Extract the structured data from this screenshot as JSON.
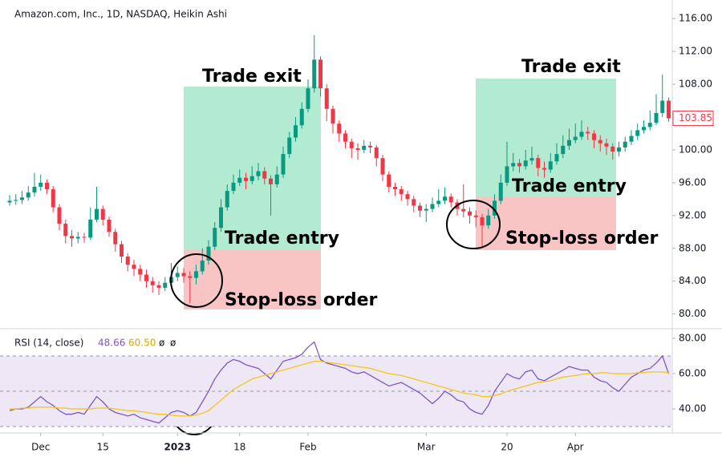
{
  "chart_data": [
    {
      "type": "candlestick",
      "title": "Amazon.com, Inc., 1D, NASDAQ, Heikin Ashi",
      "up_color": "#089981",
      "down_color": "#f23645",
      "ylim": [
        78.4,
        117
      ],
      "yticks": [
        {
          "value": 80,
          "label": "80.00"
        },
        {
          "value": 84,
          "label": "84.00"
        },
        {
          "value": 88,
          "label": "88.00"
        },
        {
          "value": 92,
          "label": "92.00"
        },
        {
          "value": 96,
          "label": "96.00"
        },
        {
          "value": 100,
          "label": "100.00"
        },
        {
          "value": 104,
          "label": "104.00"
        },
        {
          "value": 108,
          "label": "108.00"
        },
        {
          "value": 112,
          "label": "112.00"
        },
        {
          "value": 116,
          "label": "116.00"
        }
      ],
      "open": [
        93.6,
        93.8,
        93.9,
        94.2,
        94.8,
        95.5,
        96.0,
        95.2,
        93.0,
        91.0,
        89.5,
        89.2,
        89.4,
        89.3,
        91.5,
        92.8,
        91.5,
        90.0,
        88.5,
        87.0,
        86.0,
        85.5,
        84.8,
        84.0,
        83.5,
        83.2,
        83.8,
        84.5,
        85.0,
        84.6,
        84.4,
        85.2,
        86.5,
        88.2,
        90.5,
        93.0,
        95.0,
        96.0,
        96.6,
        96.2,
        96.8,
        97.4,
        96.5,
        95.8,
        97.0,
        99.5,
        101.5,
        103.0,
        105.0,
        107.5,
        111.0,
        107.5,
        105.0,
        103.2,
        102.0,
        101.0,
        100.2,
        100.0,
        100.5,
        100.3,
        99.0,
        97.0,
        95.5,
        95.2,
        94.6,
        94.0,
        93.2,
        92.6,
        92.8,
        93.4,
        93.8,
        94.3,
        93.6,
        92.8,
        92.5,
        92.0,
        91.8,
        90.8,
        92.0,
        93.8,
        96.0,
        98.0,
        98.4,
        98.0,
        98.7,
        99.0,
        97.8,
        97.6,
        98.6,
        99.5,
        100.5,
        101.2,
        101.6,
        102.2,
        102.0,
        101.2,
        100.8,
        100.4,
        99.8,
        100.3,
        101.0,
        101.7,
        102.4,
        102.8,
        103.3,
        104.5,
        106.0
      ],
      "high": [
        94.5,
        94.6,
        95.0,
        95.6,
        97.2,
        97.0,
        96.4,
        95.6,
        93.4,
        91.5,
        90.2,
        90.0,
        89.9,
        93.0,
        95.5,
        93.2,
        91.9,
        90.4,
        88.9,
        87.4,
        86.6,
        86.0,
        85.4,
        84.5,
        84.0,
        84.5,
        86.2,
        85.8,
        85.6,
        85.2,
        86.0,
        88.0,
        89.0,
        91.2,
        94.0,
        95.8,
        97.0,
        97.6,
        97.2,
        98.0,
        98.4,
        97.9,
        96.9,
        98.0,
        100.4,
        102.2,
        104.0,
        105.8,
        108.6,
        114.0,
        111.4,
        108.0,
        105.4,
        103.6,
        102.4,
        101.4,
        100.8,
        101.2,
        101.0,
        100.6,
        99.4,
        97.4,
        96.0,
        95.6,
        95.0,
        94.4,
        93.6,
        93.4,
        94.2,
        95.2,
        95.4,
        94.7,
        94.0,
        95.8,
        93.0,
        92.6,
        92.2,
        92.8,
        94.6,
        97.0,
        101.0,
        99.6,
        98.9,
        100.0,
        100.4,
        99.4,
        98.6,
        99.6,
        100.8,
        101.8,
        102.6,
        103.2,
        103.6,
        102.8,
        102.4,
        101.8,
        101.4,
        100.8,
        101.0,
        101.6,
        102.4,
        103.2,
        103.6,
        104.8,
        106.8,
        109.2,
        106.4
      ],
      "low": [
        93.2,
        93.3,
        93.4,
        93.8,
        94.3,
        95.0,
        94.6,
        92.4,
        90.2,
        88.6,
        88.2,
        88.6,
        88.7,
        89.0,
        91.2,
        90.8,
        89.4,
        87.6,
        86.2,
        85.2,
        84.6,
        84.0,
        83.2,
        82.6,
        82.3,
        82.8,
        83.5,
        84.0,
        83.8,
        81.3,
        83.6,
        84.8,
        86.0,
        87.8,
        90.0,
        92.6,
        94.6,
        95.6,
        95.2,
        95.8,
        96.3,
        95.8,
        92.0,
        95.4,
        96.6,
        99.0,
        101.0,
        102.6,
        104.6,
        107.0,
        106.5,
        103.5,
        102.0,
        101.0,
        100.2,
        99.0,
        98.8,
        99.6,
        99.6,
        98.0,
        96.2,
        94.8,
        94.4,
        93.8,
        93.2,
        92.4,
        91.8,
        91.2,
        92.4,
        93.0,
        93.4,
        93.0,
        92.0,
        91.8,
        91.0,
        90.6,
        88.2,
        90.4,
        91.6,
        93.4,
        95.6,
        97.4,
        97.2,
        97.6,
        98.2,
        96.8,
        96.6,
        97.2,
        98.2,
        99.0,
        100.0,
        100.8,
        101.2,
        101.2,
        100.2,
        99.8,
        99.4,
        98.8,
        99.2,
        99.8,
        100.6,
        101.2,
        102.0,
        102.4,
        103.0,
        104.0,
        103.4
      ],
      "close": [
        93.8,
        93.9,
        94.2,
        94.8,
        95.5,
        96.0,
        95.2,
        93.0,
        91.0,
        89.5,
        89.2,
        89.4,
        89.3,
        91.5,
        92.8,
        91.5,
        90.0,
        88.5,
        87.0,
        86.0,
        85.5,
        84.8,
        84.0,
        83.5,
        83.2,
        83.8,
        84.5,
        85.0,
        84.6,
        84.4,
        85.2,
        86.5,
        88.2,
        90.5,
        93.0,
        95.0,
        96.0,
        96.6,
        96.2,
        96.8,
        97.4,
        96.5,
        95.8,
        97.0,
        99.5,
        101.5,
        103.0,
        105.0,
        107.5,
        111.0,
        107.5,
        105.0,
        103.2,
        102.0,
        101.0,
        100.2,
        100.0,
        100.5,
        100.3,
        99.0,
        97.0,
        95.5,
        95.2,
        94.6,
        94.0,
        93.2,
        92.6,
        92.8,
        93.4,
        93.8,
        94.3,
        93.6,
        92.8,
        92.5,
        92.0,
        91.8,
        90.8,
        92.0,
        93.8,
        96.0,
        98.0,
        98.4,
        98.0,
        98.7,
        99.0,
        97.8,
        97.6,
        98.6,
        99.5,
        100.5,
        101.2,
        101.6,
        102.2,
        102.0,
        101.2,
        100.8,
        100.4,
        99.8,
        100.3,
        101.0,
        101.7,
        102.4,
        102.8,
        103.3,
        104.5,
        106.0,
        103.85
      ],
      "annotations": [
        "Trade exit",
        "Trade entry",
        "Stop-loss order",
        "Trade exit",
        "Trade entry",
        "Stop-loss order"
      ]
    },
    {
      "type": "line",
      "title": "RSI (14, close)",
      "legend_values": [
        "48.66",
        "60.50",
        "ø",
        "ø"
      ],
      "ylim": [
        26.4,
        84.1
      ],
      "band_color": "#ede7f6",
      "levels": [
        30,
        50,
        70
      ],
      "yticks": [
        {
          "value": 40,
          "label": "40.00"
        },
        {
          "value": 60,
          "label": "60.00"
        },
        {
          "value": 80,
          "label": "80.00"
        }
      ],
      "xticks": [
        {
          "value": 5,
          "label": "Dec"
        },
        {
          "value": 15,
          "label": "15"
        },
        {
          "value": 27,
          "label": "2023"
        },
        {
          "value": 37,
          "label": "18"
        },
        {
          "value": 48,
          "label": "Feb"
        },
        {
          "value": 67,
          "label": "Mar"
        },
        {
          "value": 80,
          "label": "20"
        },
        {
          "value": 91,
          "label": "Apr"
        }
      ],
      "series": [
        {
          "color": "#7e57c2",
          "values": [
            39,
            40,
            40,
            41,
            44,
            47,
            44,
            42,
            39,
            37,
            37,
            38,
            37,
            42,
            47,
            44,
            40,
            38,
            37,
            36,
            37,
            35,
            34,
            33,
            32,
            35,
            38,
            39,
            38,
            36,
            38,
            44,
            50,
            57,
            62,
            66,
            68,
            67,
            65,
            64,
            63,
            60,
            57,
            62,
            67,
            68,
            69,
            71,
            75,
            78,
            68,
            66,
            65,
            64,
            63,
            61,
            60,
            61,
            59,
            57,
            55,
            53,
            54,
            55,
            53,
            51,
            49,
            46,
            43,
            46,
            50,
            48,
            45,
            44,
            40,
            38,
            37,
            42,
            50,
            55,
            60,
            58,
            57,
            61,
            62,
            57,
            56,
            58,
            60,
            62,
            64,
            63,
            62,
            62,
            58,
            56,
            55,
            52,
            50,
            54,
            58,
            60,
            62,
            63,
            66,
            70,
            60
          ]
        },
        {
          "color": "#f5c518",
          "values": [
            40,
            40,
            40.5,
            40.5,
            41,
            41,
            41,
            41,
            40.5,
            40.5,
            40,
            40,
            40,
            40,
            40.5,
            40.5,
            40.5,
            40,
            39.5,
            39,
            39,
            38.5,
            38,
            37.5,
            37,
            37,
            36.5,
            36,
            36,
            36,
            36.5,
            37.5,
            39,
            42,
            45,
            48,
            51,
            53,
            55,
            57,
            58,
            59,
            60,
            61,
            62,
            63,
            64,
            65,
            66,
            67,
            67,
            66.5,
            66,
            65.5,
            65,
            64.5,
            64,
            63.5,
            63,
            62,
            61,
            60,
            59.5,
            59,
            58,
            57,
            56,
            55,
            54,
            53,
            52,
            51,
            50,
            49,
            48.5,
            48,
            47,
            47,
            47.5,
            48.5,
            50,
            51,
            52,
            53,
            54,
            55,
            55.5,
            56,
            57,
            58,
            58.5,
            59,
            59.5,
            60,
            60,
            60.5,
            60.5,
            60,
            60,
            60,
            60,
            60.5,
            60.5,
            61,
            61,
            61,
            60.5
          ]
        }
      ]
    }
  ]
}
